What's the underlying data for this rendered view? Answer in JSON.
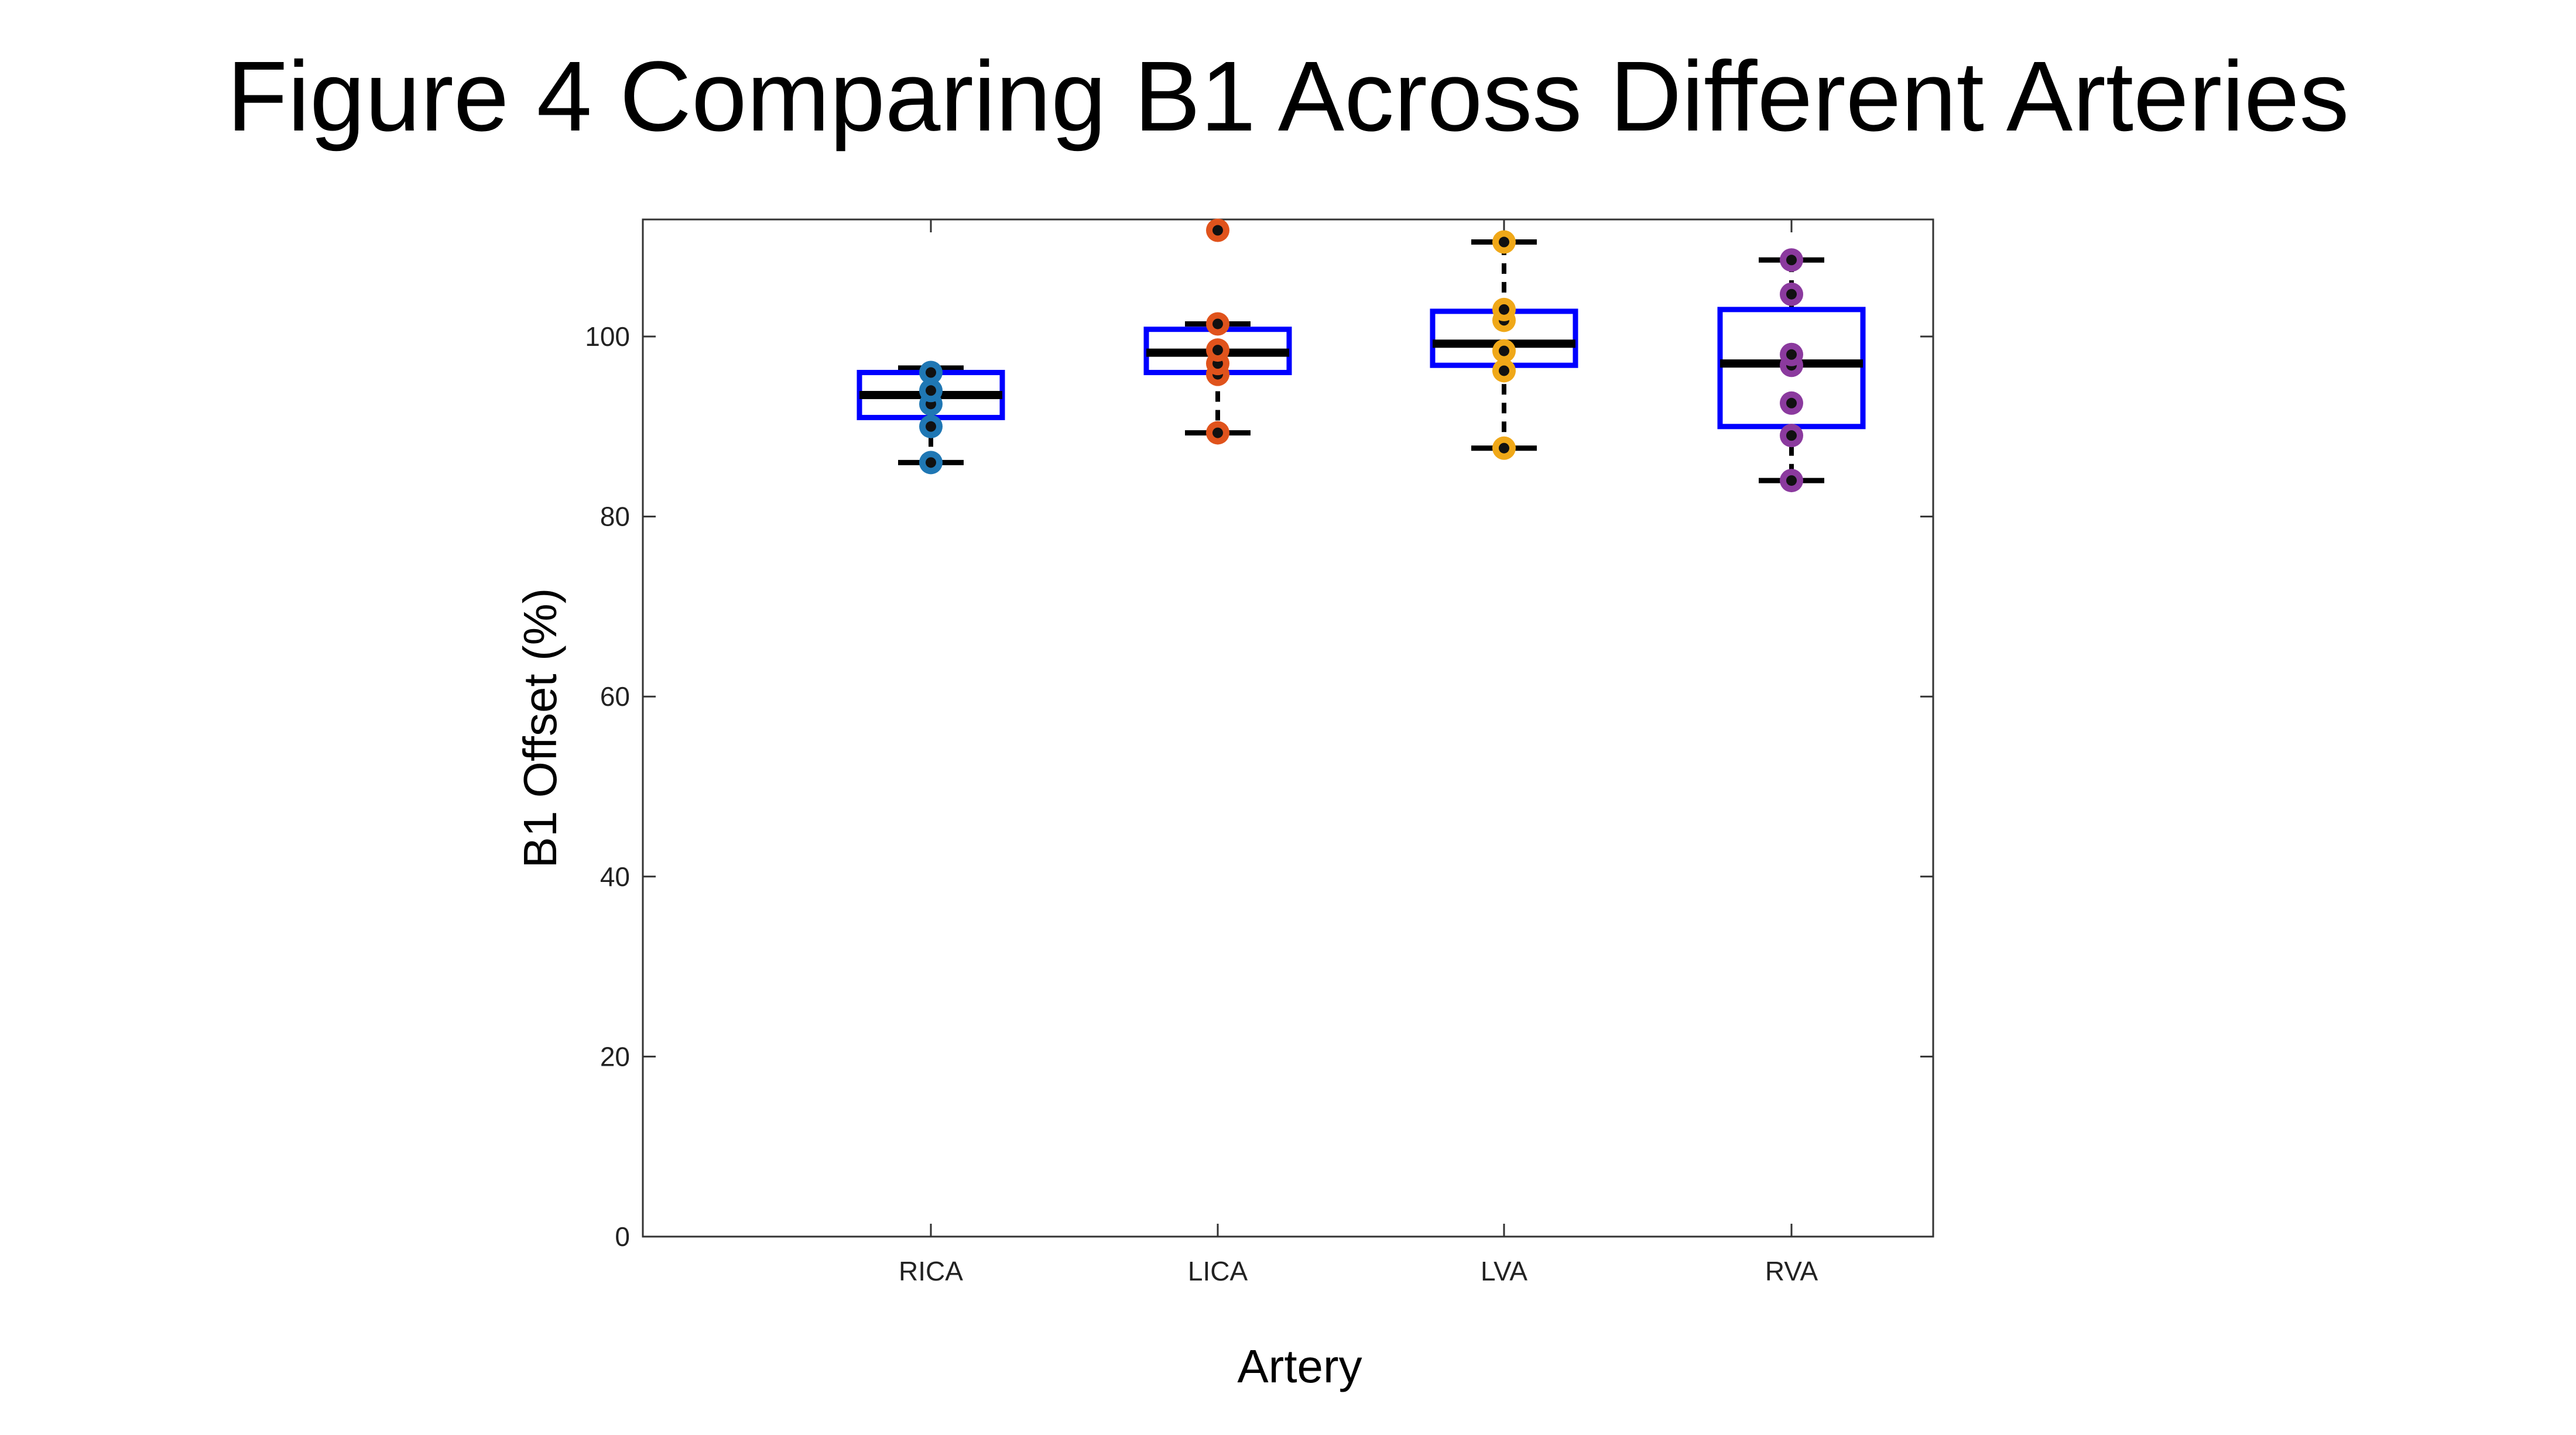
{
  "page": {
    "title": "Figure 4 Comparing B1 Across Different Arteries"
  },
  "chart_data": {
    "type": "box",
    "xlabel": "Artery",
    "ylabel": "B1 Offset (%)",
    "ylim": [
      0,
      110
    ],
    "yticks": [
      0,
      20,
      40,
      60,
      80,
      100
    ],
    "categories": [
      "RICA",
      "LICA",
      "LVA",
      "RVA"
    ],
    "boxes": [
      {
        "category": "RICA",
        "whisker_low": 86,
        "q1": 91,
        "median": 93.5,
        "q3": 96,
        "whisker_high": 96.5
      },
      {
        "category": "LICA",
        "whisker_low": 89.3,
        "q1": 96,
        "median": 98.2,
        "q3": 100.8,
        "whisker_high": 101.4
      },
      {
        "category": "LVA",
        "whisker_low": 87.6,
        "q1": 96.8,
        "median": 99.2,
        "q3": 102.8,
        "whisker_high": 110.5
      },
      {
        "category": "RVA",
        "whisker_low": 84,
        "q1": 90,
        "median": 97,
        "q3": 103,
        "whisker_high": 108.5
      }
    ],
    "points": [
      {
        "category": "RICA",
        "color": "#1f77b4",
        "values": [
          86,
          90,
          92.5,
          94,
          96
        ]
      },
      {
        "category": "LICA",
        "color": "#e0531c",
        "values": [
          89.3,
          95.8,
          97,
          98.5,
          101.4,
          111.8
        ]
      },
      {
        "category": "LVA",
        "color": "#f0a818",
        "values": [
          87.6,
          96.2,
          98.4,
          101.8,
          103,
          110.5
        ]
      },
      {
        "category": "RVA",
        "color": "#8b3a9e",
        "values": [
          84,
          89,
          92.6,
          96.8,
          98,
          104.7,
          108.5
        ]
      }
    ],
    "colors": {
      "box": "#0000ff",
      "median": "#000000",
      "whisker": "#000000",
      "point_center": "#111111"
    }
  }
}
